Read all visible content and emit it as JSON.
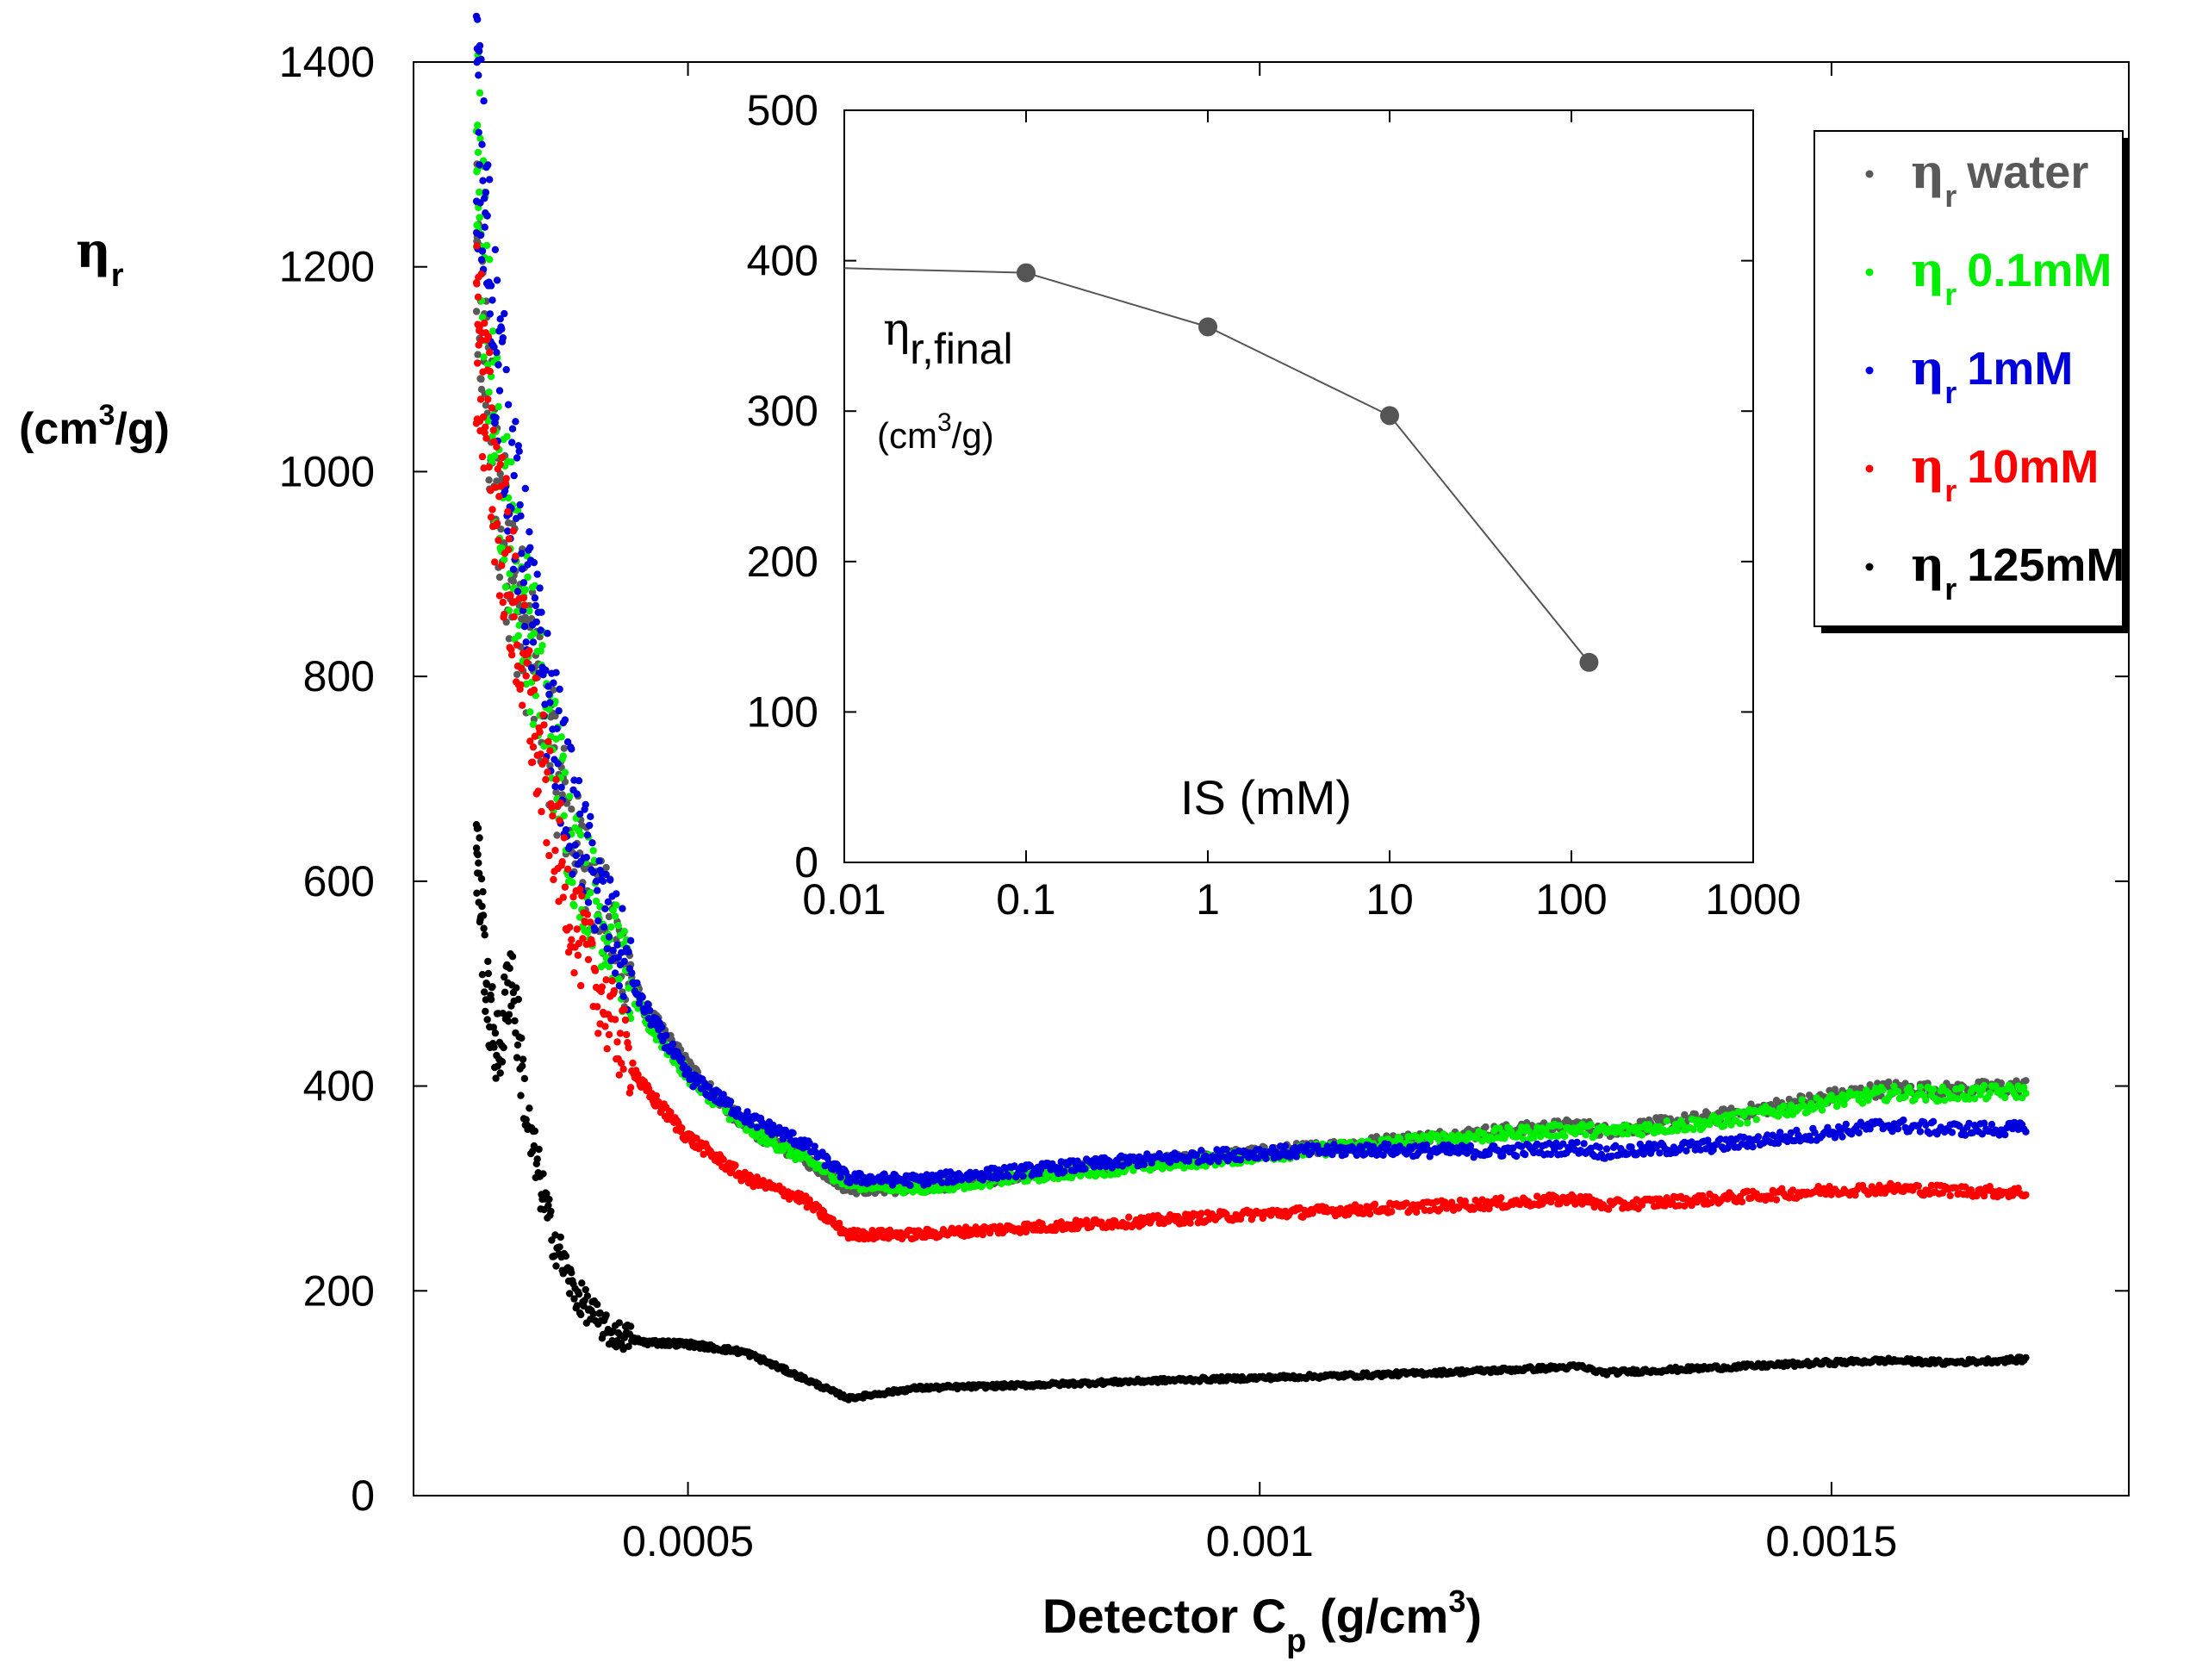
{
  "chart_data": [
    {
      "type": "scatter",
      "title": "",
      "xlabel": "Detector C",
      "xlabel_sub": "p",
      "xlabel_unit_pre": " (g/cm",
      "xlabel_unit_sup": "3",
      "xlabel_unit_post": ")",
      "ylabel_symbol": "η",
      "ylabel_sub": "r",
      "ylabel_unit_pre": "(cm",
      "ylabel_unit_sup": "3",
      "ylabel_unit_post": "/g)",
      "xlim": [
        0.00026,
        0.00176
      ],
      "ylim": [
        0,
        1400
      ],
      "xticks": [
        0.0005,
        0.001,
        0.0015
      ],
      "xtick_labels": [
        "0.0005",
        "0.001",
        "0.0015"
      ],
      "yticks": [
        0,
        200,
        400,
        600,
        800,
        1000,
        1200,
        1400
      ],
      "ytick_labels": [
        "0",
        "200",
        "400",
        "600",
        "800",
        "1000",
        "1200",
        "1400"
      ],
      "legend_position": "top-right",
      "series": [
        {
          "name": "water",
          "legend_symbol": "η",
          "legend_sub": "r",
          "legend_text": "water",
          "color": "#595959",
          "x": [
            0.000315,
            0.00033,
            0.00035,
            0.00037,
            0.0004,
            0.00043,
            0.00046,
            0.0005,
            0.00055,
            0.0006,
            0.00064,
            0.0007,
            0.0008,
            0.0009,
            0.001,
            0.0011,
            0.0012,
            0.00128,
            0.0013,
            0.0014,
            0.0015,
            0.00155,
            0.0016,
            0.00167
          ],
          "y": [
            1200,
            1000,
            880,
            780,
            640,
            560,
            480,
            420,
            360,
            330,
            300,
            300,
            315,
            325,
            335,
            345,
            355,
            362,
            356,
            370,
            390,
            398,
            396,
            400
          ]
        },
        {
          "name": "0.1mM",
          "legend_symbol": "η",
          "legend_sub": "r",
          "legend_text": "0.1mM",
          "color": "#00ee00",
          "x": [
            0.000315,
            0.00033,
            0.00035,
            0.00037,
            0.0004,
            0.00043,
            0.00046,
            0.0005,
            0.00055,
            0.0006,
            0.00064,
            0.0007,
            0.0008,
            0.0009,
            0.001,
            0.0011,
            0.0012,
            0.00128,
            0.0013,
            0.0014,
            0.0015,
            0.00155,
            0.0016,
            0.00167
          ],
          "y": [
            1320,
            1050,
            900,
            800,
            630,
            550,
            470,
            410,
            360,
            330,
            305,
            300,
            312,
            322,
            332,
            343,
            352,
            358,
            355,
            365,
            385,
            393,
            392,
            395
          ]
        },
        {
          "name": "1mM",
          "legend_symbol": "η",
          "legend_sub": "r",
          "legend_text": "1mM",
          "color": "#0000dd",
          "x": [
            0.000315,
            0.00033,
            0.00035,
            0.00037,
            0.0004,
            0.00043,
            0.00046,
            0.0005,
            0.00055,
            0.0006,
            0.00064,
            0.0007,
            0.0008,
            0.0009,
            0.001,
            0.0011,
            0.0012,
            0.00128,
            0.0013,
            0.0014,
            0.0015,
            0.00155,
            0.0016,
            0.00167
          ],
          "y": [
            1350,
            1150,
            960,
            820,
            660,
            560,
            480,
            410,
            370,
            345,
            310,
            308,
            318,
            328,
            335,
            338,
            336,
            340,
            335,
            342,
            355,
            362,
            358,
            358
          ]
        },
        {
          "name": "10mM",
          "legend_symbol": "η",
          "legend_sub": "r",
          "legend_text": "10mM",
          "color": "#ff0000",
          "x": [
            0.000315,
            0.00033,
            0.00035,
            0.00037,
            0.0004,
            0.00043,
            0.00046,
            0.0005,
            0.00055,
            0.0006,
            0.00064,
            0.0007,
            0.0008,
            0.0009,
            0.001,
            0.0011,
            0.0012,
            0.00128,
            0.0013,
            0.0014,
            0.0015,
            0.00155,
            0.0016,
            0.00167
          ],
          "y": [
            1150,
            1000,
            850,
            720,
            560,
            470,
            400,
            350,
            310,
            290,
            255,
            255,
            262,
            268,
            275,
            280,
            285,
            290,
            283,
            290,
            298,
            300,
            298,
            296
          ]
        },
        {
          "name": "125mM",
          "legend_symbol": "η",
          "legend_sub": "r",
          "legend_text": "125mM",
          "color": "#000000",
          "x": [
            0.000315,
            0.000325,
            0.000335,
            0.000345,
            0.00036,
            0.00038,
            0.0004,
            0.00043,
            0.00046,
            0.0005,
            0.00055,
            0.0006,
            0.00064,
            0.0007,
            0.0008,
            0.0009,
            0.001,
            0.0011,
            0.0012,
            0.00128,
            0.0013,
            0.0014,
            0.0015,
            0.00155,
            0.0016,
            0.00167
          ],
          "y": [
            640,
            480,
            430,
            520,
            360,
            260,
            200,
            160,
            150,
            148,
            140,
            115,
            95,
            105,
            108,
            112,
            115,
            118,
            122,
            126,
            120,
            125,
            130,
            132,
            130,
            133
          ]
        }
      ]
    },
    {
      "type": "line",
      "title": "",
      "inset": true,
      "xlabel": "IS (mM)",
      "ylabel_symbol": "η",
      "ylabel_sub": "r,final",
      "ylabel_unit_pre": "(cm",
      "ylabel_unit_sup": "3",
      "ylabel_unit_post": "/g)",
      "xscale": "log",
      "xlim": [
        0.01,
        1000
      ],
      "ylim": [
        0,
        500
      ],
      "xticks": [
        0.01,
        0.1,
        1,
        10,
        100,
        1000
      ],
      "xtick_labels": [
        "0.01",
        "0.1",
        "1",
        "10",
        "100",
        "1000"
      ],
      "yticks": [
        0,
        100,
        200,
        300,
        400,
        500
      ],
      "ytick_labels": [
        "0",
        "100",
        "200",
        "300",
        "400",
        "500"
      ],
      "series": [
        {
          "name": "η_r,final",
          "color": "#555555",
          "x": [
            0.1,
            1,
            10,
            125
          ],
          "y": [
            392,
            356,
            297,
            133
          ],
          "line_start": {
            "x": 0.01,
            "y": 395
          }
        }
      ]
    }
  ]
}
